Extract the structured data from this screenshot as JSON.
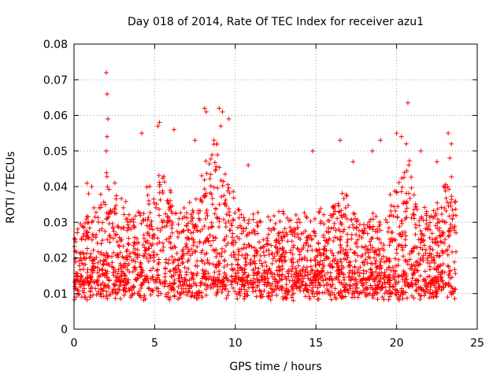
{
  "chart_data": {
    "type": "scatter",
    "title": "Day 018 of 2014, Rate Of TEC Index for receiver azu1",
    "xlabel": "GPS time / hours",
    "ylabel": "ROTI / TECUs",
    "xlim": [
      0,
      25
    ],
    "ylim": [
      0,
      0.08
    ],
    "x_ticks": [
      0,
      5,
      10,
      15,
      20,
      25
    ],
    "x_tick_labels": [
      "0",
      "5",
      "10",
      "15",
      "20",
      "25"
    ],
    "y_ticks": [
      0,
      0.01,
      0.02,
      0.03,
      0.04,
      0.05,
      0.06,
      0.07,
      0.08
    ],
    "y_tick_labels": [
      "0",
      "0.01",
      "0.02",
      "0.03",
      "0.04",
      "0.05",
      "0.06",
      "0.07",
      "0.08"
    ],
    "grid": true,
    "marker": "plus",
    "color": "#ff0000",
    "series": [
      {
        "name": "azu1",
        "points": [
          [
            2.0,
            0.072
          ],
          [
            2.05,
            0.066
          ],
          [
            2.1,
            0.059
          ],
          [
            2.05,
            0.054
          ],
          [
            2.0,
            0.05
          ],
          [
            1.1,
            0.04
          ],
          [
            0.8,
            0.041
          ],
          [
            0.9,
            0.038
          ],
          [
            5.2,
            0.057
          ],
          [
            5.3,
            0.058
          ],
          [
            4.2,
            0.055
          ],
          [
            6.2,
            0.056
          ],
          [
            7.5,
            0.053
          ],
          [
            8.1,
            0.062
          ],
          [
            8.2,
            0.061
          ],
          [
            9.0,
            0.062
          ],
          [
            9.2,
            0.061
          ],
          [
            9.1,
            0.057
          ],
          [
            9.6,
            0.059
          ],
          [
            10.8,
            0.046
          ],
          [
            14.8,
            0.05
          ],
          [
            16.5,
            0.053
          ],
          [
            19.0,
            0.053
          ],
          [
            20.0,
            0.055
          ],
          [
            20.3,
            0.054
          ],
          [
            20.7,
            0.0635
          ],
          [
            20.6,
            0.052
          ],
          [
            21.5,
            0.05
          ],
          [
            23.2,
            0.055
          ],
          [
            23.4,
            0.052
          ],
          [
            23.3,
            0.048
          ],
          [
            22.5,
            0.047
          ],
          [
            17.3,
            0.047
          ],
          [
            18.5,
            0.05
          ]
        ]
      }
    ]
  }
}
